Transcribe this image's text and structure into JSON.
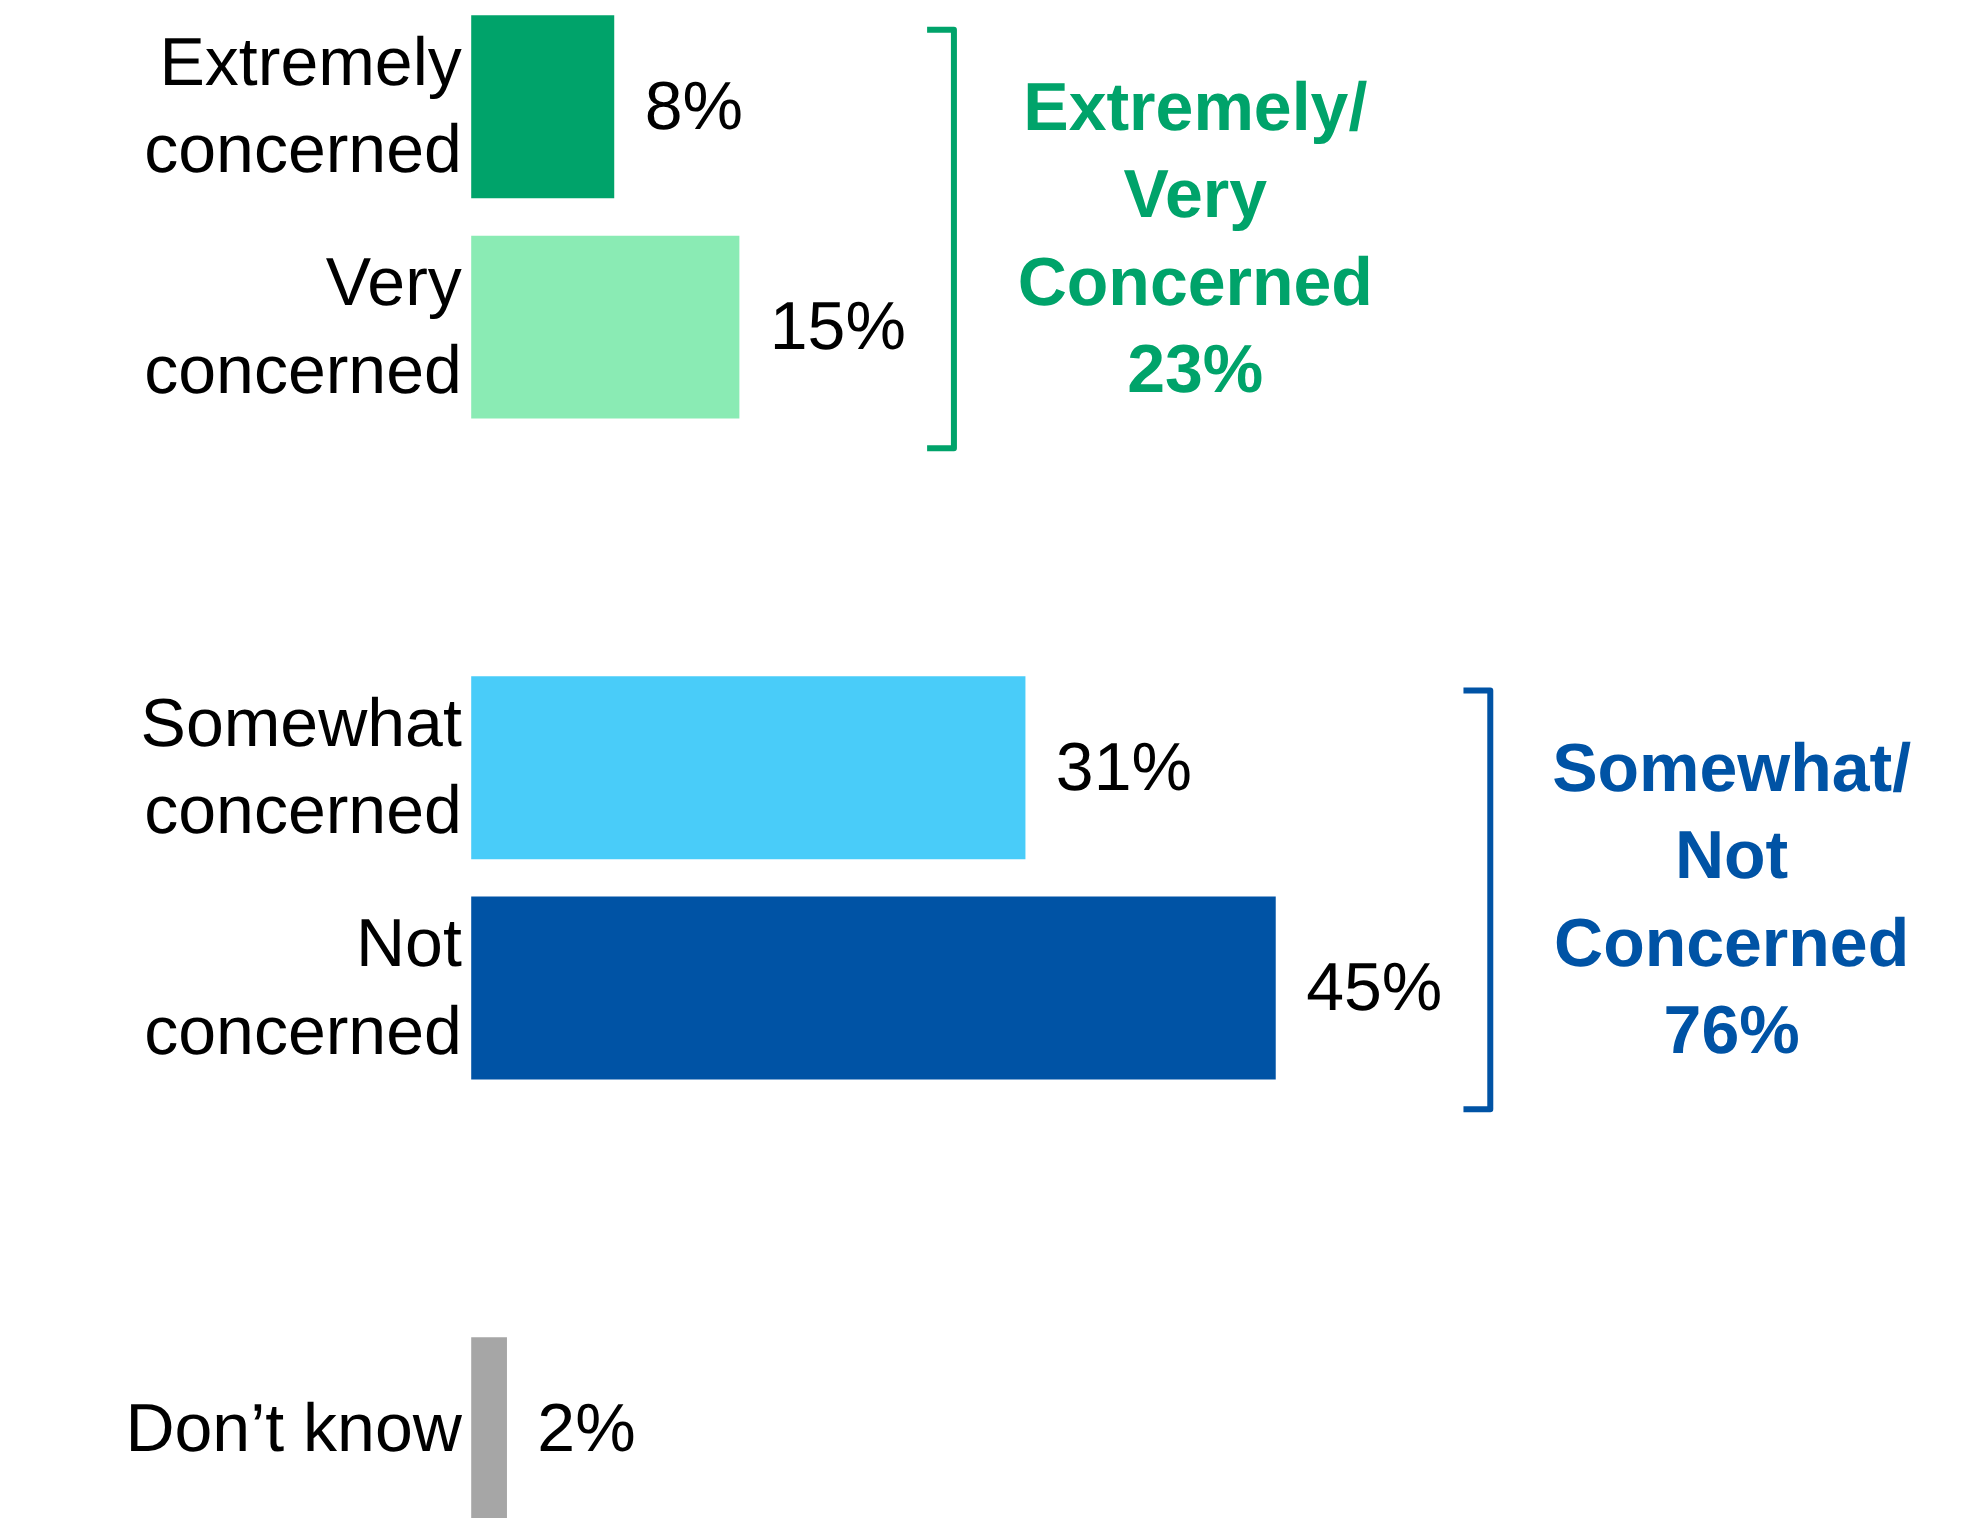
{
  "chart_data": {
    "type": "bar",
    "orientation": "horizontal",
    "categories": [
      "Extremely\nconcerned",
      "Very\nconcerned",
      null,
      "Somewhat\nconcerned",
      "Not\nconcerned",
      null,
      "Don’t know"
    ],
    "values": [
      8,
      15,
      null,
      31,
      45,
      null,
      2
    ],
    "colors": [
      "#00a36a",
      "#8aebb4",
      null,
      "#49ccf9",
      "#0053a5",
      null,
      "#a6a6a6"
    ],
    "value_labels": [
      "8%",
      "15%",
      null,
      "31%",
      "45%",
      null,
      "2%"
    ],
    "annotations": [
      "Extremely/\nVery\nConcerned\n23%",
      "Somewhat/\nNot\nConcerned\n76%"
    ],
    "grid": false
  }
}
